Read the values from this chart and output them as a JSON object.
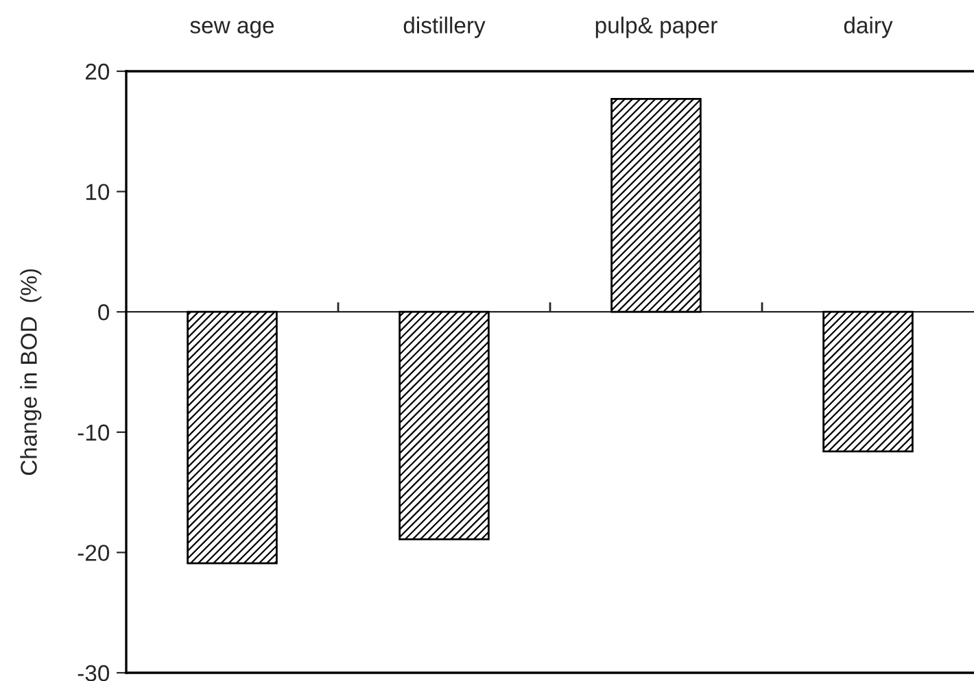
{
  "chart_data": {
    "type": "bar",
    "ylabel": "Change in BOD  (%)",
    "categories": [
      "sew age",
      "distillery",
      "pulp& paper",
      "dairy"
    ],
    "values": [
      -20.9,
      -18.9,
      17.7,
      -11.6
    ],
    "ylim": [
      -30,
      20
    ],
    "yticks": [
      -30,
      -20,
      -10,
      0,
      10,
      20
    ],
    "legend": false
  }
}
